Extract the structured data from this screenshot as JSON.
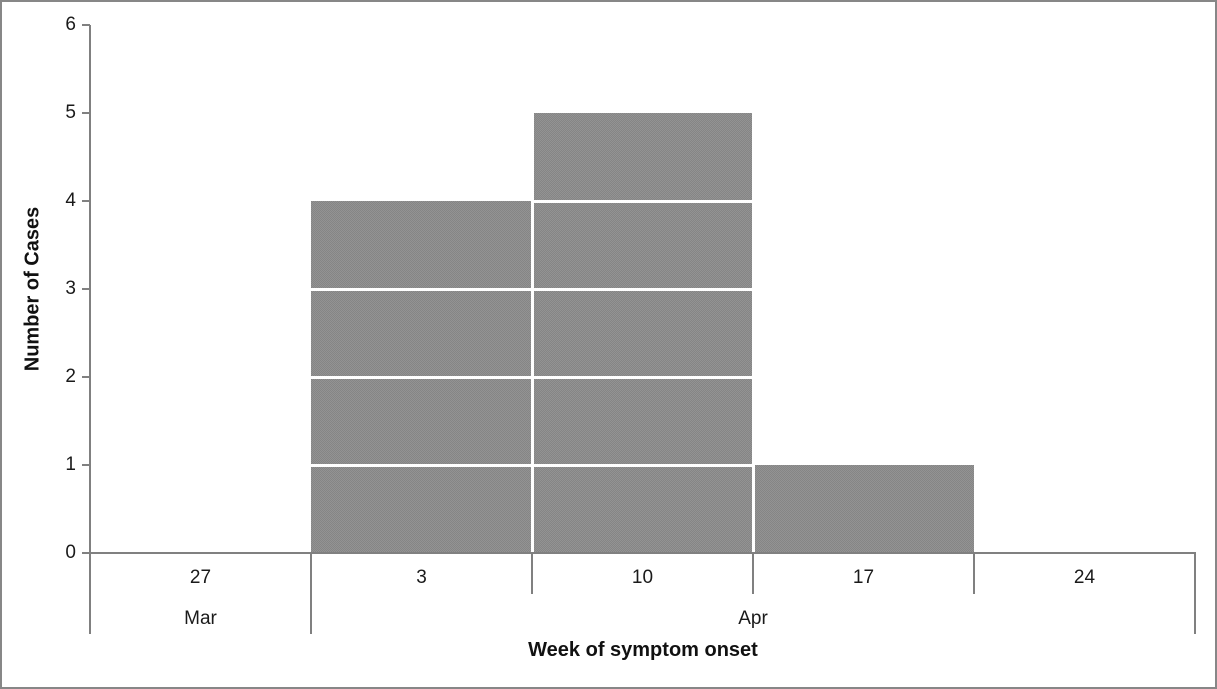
{
  "chart_data": {
    "type": "bar",
    "subtype": "epi-curve-unit-stacked",
    "title": "",
    "xlabel": "Week of symptom onset",
    "ylabel": "Number of Cases",
    "categories": [
      "27",
      "3",
      "10",
      "17",
      "24"
    ],
    "month_groups": [
      {
        "label": "Mar",
        "span": 1
      },
      {
        "label": "Apr",
        "span": 4
      }
    ],
    "values": [
      0,
      4,
      5,
      1,
      0
    ],
    "yticks": [
      "0",
      "1",
      "2",
      "3",
      "4",
      "5",
      "6"
    ],
    "ylim": [
      0,
      6
    ],
    "grid": false,
    "legend": false,
    "colors": {
      "bar_fill": "#8b8b8b",
      "bar_pattern_light": "#939393",
      "bar_pattern_dark": "#858585",
      "case_separator": "#ffffff",
      "axis": "#808080",
      "text": "#1a1a1a",
      "canvas_border": "#878787",
      "background": "#ffffff"
    }
  }
}
